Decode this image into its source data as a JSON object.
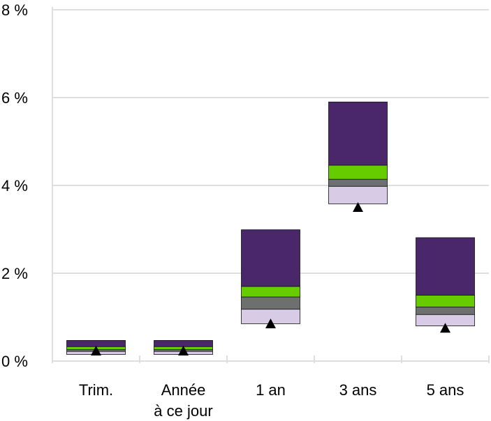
{
  "chart_data": {
    "type": "floating-stacked-bar",
    "title": "",
    "xlabel": "",
    "ylabel": "",
    "ylim": [
      0,
      8
    ],
    "yticks": [
      0,
      2,
      4,
      6,
      8
    ],
    "ytick_labels": [
      "0 %",
      "2 %",
      "4 %",
      "6 %",
      "8 %"
    ],
    "categories": [
      [
        "Trim."
      ],
      [
        "Année",
        "à ce jour"
      ],
      [
        "1 an"
      ],
      [
        "3 ans"
      ],
      [
        "5 ans"
      ]
    ],
    "bands": [
      {
        "color": "#d8cbe6",
        "bottom": [
          0.15,
          0.15,
          0.85,
          3.58,
          0.8
        ],
        "top": [
          0.22,
          0.22,
          1.18,
          3.98,
          1.06
        ]
      },
      {
        "color": "#6e7070",
        "bottom": [
          0.22,
          0.22,
          1.18,
          3.98,
          1.06
        ],
        "top": [
          0.26,
          0.26,
          1.46,
          4.14,
          1.23
        ]
      },
      {
        "color": "#66cc00",
        "bottom": [
          0.26,
          0.26,
          1.46,
          4.14,
          1.23
        ],
        "top": [
          0.33,
          0.33,
          1.7,
          4.46,
          1.5
        ]
      },
      {
        "color": "#4a266b",
        "bottom": [
          0.33,
          0.33,
          1.7,
          4.46,
          1.5
        ],
        "top": [
          0.47,
          0.47,
          2.99,
          5.9,
          2.81
        ]
      }
    ],
    "markers": [
      0.23,
      0.23,
      0.85,
      3.5,
      0.75
    ],
    "marker_color": "#000000",
    "grid": true
  }
}
